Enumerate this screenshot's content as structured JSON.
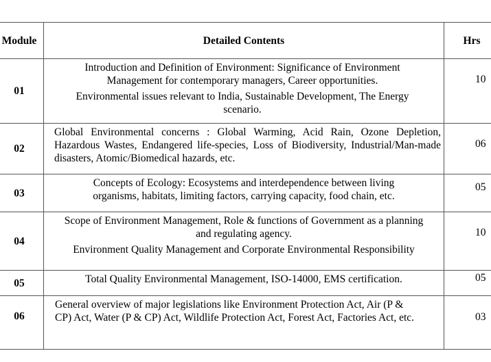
{
  "table": {
    "headers": {
      "module": "Module",
      "contents": "Detailed Contents",
      "hrs": "Hrs"
    },
    "rows": [
      {
        "module": "01",
        "paragraphs": [
          "Introduction and Definition of Environment: Significance of Environment Management for contemporary managers, Career opportunities.",
          "Environmental issues relevant to India, Sustainable Development, The Energy scenario."
        ],
        "hrs": "10"
      },
      {
        "module": "02",
        "paragraphs": [
          "Global Environmental concerns : Global Warming, Acid Rain, Ozone Depletion, Hazardous Wastes, Endangered life-species, Loss of Biodiversity, Industrial/Man-made disasters, Atomic/Biomedical hazards, etc."
        ],
        "hrs": "06"
      },
      {
        "module": "03",
        "paragraphs": [
          "Concepts of Ecology: Ecosystems and interdependence between living organisms, habitats, limiting factors, carrying capacity, food chain, etc."
        ],
        "hrs": "05"
      },
      {
        "module": "04",
        "paragraphs": [
          "Scope of Environment Management, Role & functions of Government as a planning and regulating agency.",
          "Environment Quality Management and Corporate Environmental Responsibility"
        ],
        "hrs": "10"
      },
      {
        "module": "05",
        "paragraphs": [
          "Total Quality Environmental Management, ISO-14000, EMS certification."
        ],
        "hrs": "05"
      },
      {
        "module": "06",
        "paragraphs": [
          "General overview of major legislations like Environment Protection Act, Air (P & CP) Act, Water (P & CP) Act, Wildlife Protection Act, Forest Act, Factories Act, etc."
        ],
        "hrs": "03"
      }
    ]
  }
}
